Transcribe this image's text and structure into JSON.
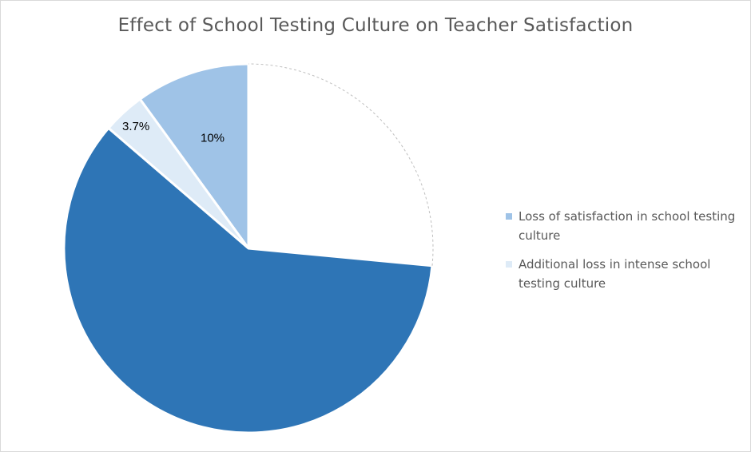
{
  "chart_data": {
    "type": "pie",
    "title": "Effect of School Testing Culture on Teacher Satisfaction",
    "start_angle_deg": 0,
    "direction": "counterclockwise",
    "slices": [
      {
        "value": 10,
        "label": "10%",
        "color": "#9fc3e7",
        "stroke": "#ffffff"
      },
      {
        "value": 3.7,
        "label": "3.7%",
        "color": "#deebf7",
        "stroke": "#ffffff"
      },
      {
        "value": 59.8,
        "label": "",
        "color": "#2e75b6",
        "stroke": "#ffffff"
      },
      {
        "value": 26.5,
        "label": "",
        "color": "#ffffff",
        "stroke": "#bfbfbf",
        "dashed": true
      }
    ],
    "legend": [
      {
        "name": "Loss of satisfaction in school testing culture",
        "color": "#9fc3e7"
      },
      {
        "name": "Additional loss in intense school testing culture",
        "color": "#deebf7"
      }
    ],
    "legend_position": "right"
  }
}
